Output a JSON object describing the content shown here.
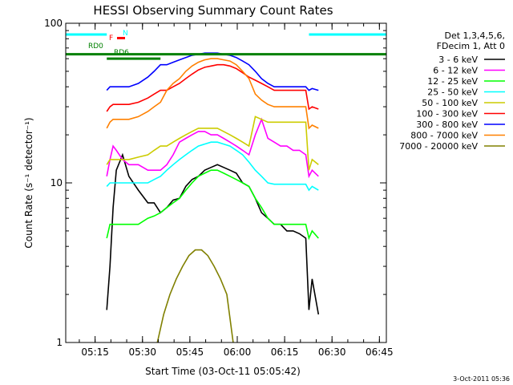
{
  "chart_data": {
    "type": "line",
    "title": "HESSI Observing Summary Count Rates",
    "xlabel": "Start Time (03-Oct-11 05:05:42)",
    "ylabel": "Count Rate (s⁻¹ detector⁻¹)",
    "yscale": "log",
    "ylim": [
      1,
      100
    ],
    "y_ticks": [
      {
        "value": 1,
        "label": "1"
      },
      {
        "value": 10,
        "label": "10"
      },
      {
        "value": 100,
        "label": "100"
      }
    ],
    "xlim_minutes": [
      0,
      101.5
    ],
    "x_ticks": [
      {
        "minute": 9.3,
        "label": "05:15"
      },
      {
        "minute": 24.3,
        "label": "05:30"
      },
      {
        "minute": 39.3,
        "label": "05:45"
      },
      {
        "minute": 54.3,
        "label": "06:00"
      },
      {
        "minute": 69.3,
        "label": "06:15"
      },
      {
        "minute": 84.3,
        "label": "06:30"
      },
      {
        "minute": 99.3,
        "label": "06:45"
      }
    ],
    "legend_header": [
      "Det 1,3,4,5,6,",
      "FDecim 1, Att 0"
    ],
    "legend_position": "right",
    "annotations": [
      {
        "text": "N",
        "color": "#00ffff"
      },
      {
        "text": "F",
        "color": "#ff0000"
      },
      {
        "text": "RD0",
        "color": "#008000"
      },
      {
        "text": "RD6",
        "color": "#008000"
      }
    ],
    "footer_date": "3-Oct-2011 05:36",
    "series": [
      {
        "name": "3 - 6 keV",
        "color": "#000000",
        "x": [
          13,
          14,
          15,
          16,
          18,
          20,
          23,
          26,
          28,
          30,
          32,
          34,
          36,
          38,
          40,
          42,
          44,
          46,
          48,
          50,
          52,
          54,
          56,
          58,
          60,
          62,
          64,
          66,
          68,
          70,
          72,
          74,
          76,
          77,
          78,
          80
        ],
        "y": [
          1.6,
          3,
          7,
          12,
          15,
          11,
          9,
          7.5,
          7.5,
          6.5,
          7,
          7.8,
          8,
          9.5,
          10.5,
          11,
          12,
          12.5,
          13,
          12.5,
          12,
          11.5,
          10,
          9.5,
          8,
          6.5,
          6,
          5.5,
          5.5,
          5,
          5,
          4.8,
          4.5,
          1.6,
          2.5,
          1.5
        ]
      },
      {
        "name": "6 - 12 keV",
        "color": "#ff00ff",
        "x": [
          13,
          14,
          15,
          16,
          18,
          20,
          23,
          26,
          28,
          30,
          32,
          34,
          36,
          38,
          40,
          42,
          44,
          46,
          48,
          50,
          52,
          54,
          56,
          58,
          60,
          62,
          64,
          66,
          68,
          70,
          72,
          74,
          76,
          77,
          78,
          80
        ],
        "y": [
          11,
          14,
          17,
          16,
          14,
          13,
          13,
          12,
          12,
          12,
          13,
          15,
          18,
          19,
          20,
          21,
          21,
          20,
          20,
          19,
          18,
          17,
          16,
          15,
          20,
          25,
          19,
          18,
          17,
          17,
          16,
          16,
          15,
          11,
          12,
          11
        ]
      },
      {
        "name": "12 - 25 keV",
        "color": "#00ff00",
        "x": [
          13,
          14,
          15,
          16,
          18,
          20,
          23,
          26,
          28,
          30,
          32,
          34,
          36,
          38,
          40,
          42,
          44,
          46,
          48,
          50,
          52,
          54,
          56,
          58,
          60,
          62,
          64,
          66,
          68,
          70,
          72,
          74,
          76,
          77,
          78,
          80
        ],
        "y": [
          4.5,
          5.5,
          5.5,
          5.5,
          5.5,
          5.5,
          5.5,
          6,
          6.2,
          6.5,
          7,
          7.5,
          8,
          9,
          10,
          11,
          11.5,
          12,
          12,
          11.5,
          11,
          10.5,
          10,
          9.5,
          8,
          7,
          6,
          5.5,
          5.5,
          5.5,
          5.5,
          5.5,
          5.5,
          4.5,
          5,
          4.5
        ]
      },
      {
        "name": "25 - 50 keV",
        "color": "#00ffff",
        "x": [
          13,
          14,
          15,
          16,
          18,
          20,
          23,
          26,
          28,
          30,
          32,
          34,
          36,
          38,
          40,
          42,
          44,
          46,
          48,
          50,
          52,
          54,
          56,
          58,
          60,
          62,
          64,
          66,
          68,
          70,
          72,
          74,
          76,
          77,
          78,
          80
        ],
        "y": [
          9.5,
          10,
          10,
          10,
          10,
          10,
          10,
          10,
          10.5,
          11,
          12,
          13,
          14,
          15,
          16,
          17,
          17.5,
          18,
          18,
          17.5,
          17,
          16,
          15,
          13.5,
          12,
          11,
          10,
          9.8,
          9.8,
          9.8,
          9.8,
          9.8,
          9.8,
          9,
          9.5,
          9
        ]
      },
      {
        "name": "50 - 100 keV",
        "color": "#cccc00",
        "x": [
          13,
          14,
          15,
          16,
          18,
          20,
          23,
          26,
          28,
          30,
          32,
          34,
          36,
          38,
          40,
          42,
          44,
          46,
          48,
          50,
          52,
          54,
          56,
          58,
          60,
          62,
          64,
          66,
          68,
          70,
          72,
          74,
          76,
          77,
          78,
          80
        ],
        "y": [
          13,
          14,
          14,
          14,
          14,
          14,
          14.5,
          15,
          16,
          17,
          17,
          18,
          19,
          20,
          21,
          22,
          22,
          22,
          22,
          21,
          20,
          19,
          18,
          17,
          26,
          25,
          24,
          24,
          24,
          24,
          24,
          24,
          24,
          12,
          14,
          13
        ]
      },
      {
        "name": "100 - 300 keV",
        "color": "#ff0000",
        "x": [
          13,
          14,
          15,
          16,
          18,
          20,
          23,
          26,
          28,
          30,
          32,
          34,
          36,
          38,
          40,
          42,
          44,
          46,
          48,
          50,
          52,
          54,
          56,
          58,
          60,
          62,
          64,
          66,
          68,
          70,
          72,
          74,
          76,
          77,
          78,
          80
        ],
        "y": [
          28,
          30,
          31,
          31,
          31,
          31,
          32,
          34,
          36,
          38,
          38,
          40,
          42,
          45,
          48,
          51,
          53,
          54,
          55,
          55,
          54,
          52,
          49,
          46,
          44,
          42,
          40,
          38,
          38,
          38,
          38,
          38,
          38,
          29,
          30,
          29
        ]
      },
      {
        "name": "300 - 800 keV",
        "color": "#0000ff",
        "x": [
          13,
          14,
          15,
          16,
          18,
          20,
          23,
          26,
          28,
          30,
          32,
          34,
          36,
          38,
          40,
          42,
          44,
          46,
          48,
          50,
          52,
          54,
          56,
          58,
          60,
          62,
          64,
          66,
          68,
          70,
          72,
          74,
          76,
          77,
          78,
          80
        ],
        "y": [
          38,
          40,
          40,
          40,
          40,
          40,
          42,
          46,
          50,
          55,
          55,
          57,
          59,
          61,
          63,
          64,
          65,
          65,
          65,
          64,
          63,
          61,
          58,
          55,
          50,
          45,
          42,
          40,
          40,
          40,
          40,
          40,
          40,
          38,
          39,
          38
        ]
      },
      {
        "name": "800 - 7000 keV",
        "color": "#ff8000",
        "x": [
          13,
          14,
          15,
          16,
          18,
          20,
          23,
          26,
          28,
          30,
          32,
          34,
          36,
          38,
          40,
          42,
          44,
          46,
          48,
          50,
          52,
          54,
          56,
          58,
          60,
          62,
          64,
          66,
          68,
          70,
          72,
          74,
          76,
          77,
          78,
          80
        ],
        "y": [
          22,
          24,
          25,
          25,
          25,
          25,
          26,
          28,
          30,
          32,
          38,
          42,
          45,
          50,
          54,
          57,
          59,
          60,
          60,
          59,
          58,
          55,
          50,
          45,
          36,
          33,
          31,
          30,
          30,
          30,
          30,
          30,
          30,
          22,
          23,
          22
        ]
      },
      {
        "name": "7000 - 20000 keV",
        "color": "#808000",
        "x": [
          29,
          31,
          33,
          35,
          37,
          39,
          41,
          43,
          45,
          47,
          49,
          51,
          53
        ],
        "y": [
          1,
          1.5,
          2,
          2.5,
          3,
          3.5,
          3.8,
          3.8,
          3.5,
          3,
          2.5,
          2,
          1
        ]
      }
    ],
    "overlays": [
      {
        "name": "N",
        "color": "#00ffff",
        "y": 85,
        "segments": [
          [
            0,
            13
          ],
          [
            77,
            101.5
          ]
        ]
      },
      {
        "name": "RD0",
        "color": "#008000",
        "y": 64,
        "segments": [
          [
            0,
            101.5
          ]
        ]
      },
      {
        "name": "RD6",
        "color": "#008000",
        "y": 60,
        "segments": [
          [
            13,
            30
          ]
        ]
      }
    ]
  }
}
